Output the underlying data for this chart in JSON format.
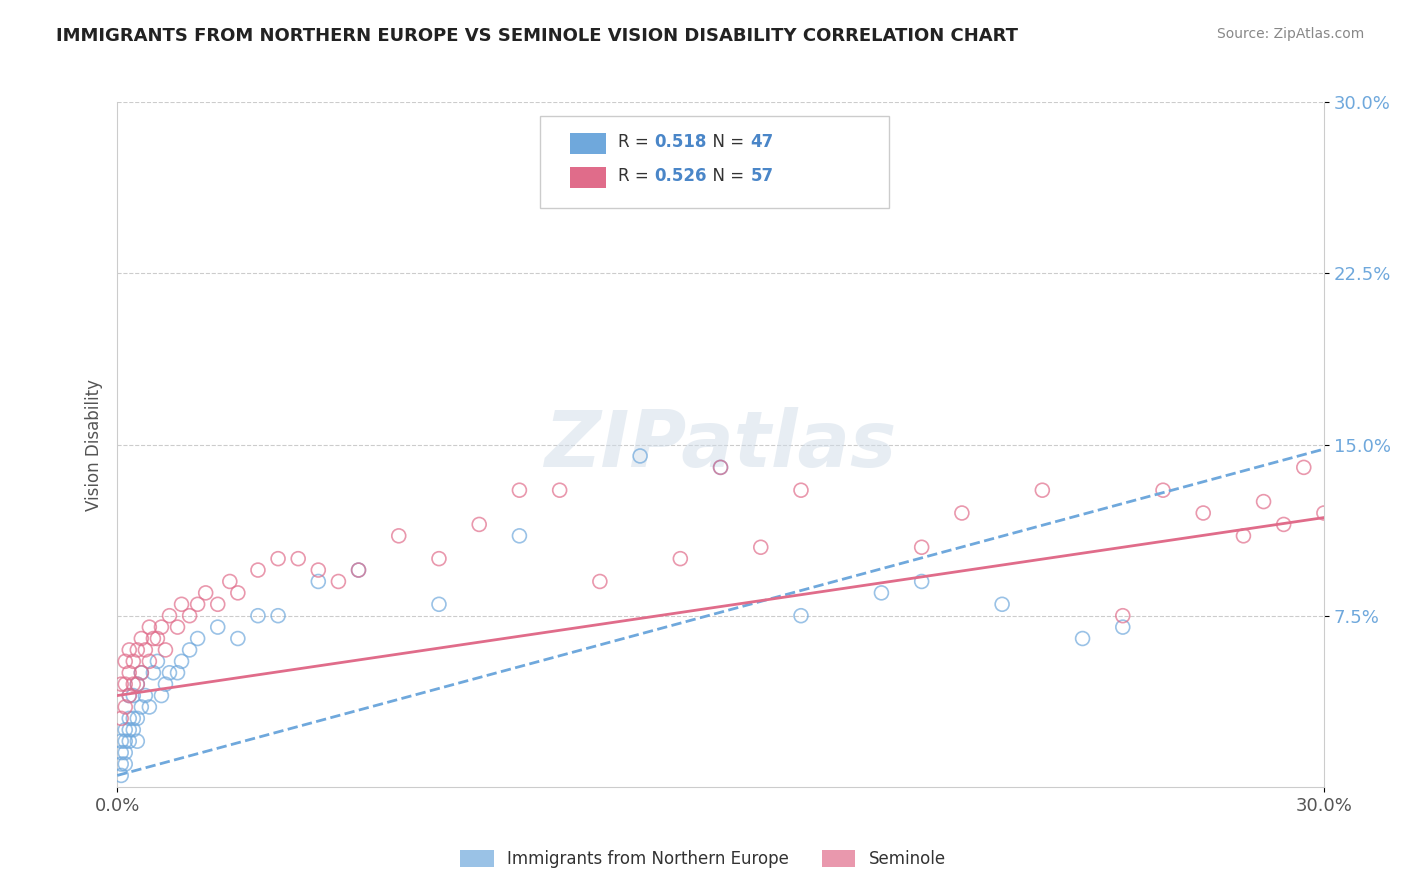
{
  "title": "IMMIGRANTS FROM NORTHERN EUROPE VS SEMINOLE VISION DISABILITY CORRELATION CHART",
  "source": "Source: ZipAtlas.com",
  "ylabel": "Vision Disability",
  "xlim": [
    0.0,
    0.3
  ],
  "ylim": [
    0.0,
    0.3
  ],
  "ytick_positions": [
    0.075,
    0.15,
    0.225,
    0.3
  ],
  "grid_color": "#cccccc",
  "background_color": "#ffffff",
  "blue_color": "#6fa8dc",
  "pink_color": "#e06c8a",
  "blue_R": 0.518,
  "blue_N": 47,
  "pink_R": 0.526,
  "pink_N": 57,
  "legend_label_blue": "Immigrants from Northern Europe",
  "legend_label_pink": "Seminole",
  "accent_color": "#4a86c8",
  "blue_scatter_x": [
    0.001,
    0.001,
    0.001,
    0.001,
    0.002,
    0.002,
    0.002,
    0.002,
    0.003,
    0.003,
    0.003,
    0.003,
    0.004,
    0.004,
    0.004,
    0.005,
    0.005,
    0.005,
    0.006,
    0.006,
    0.007,
    0.008,
    0.009,
    0.01,
    0.011,
    0.012,
    0.013,
    0.015,
    0.016,
    0.018,
    0.02,
    0.025,
    0.03,
    0.035,
    0.04,
    0.05,
    0.06,
    0.08,
    0.1,
    0.13,
    0.15,
    0.2,
    0.24,
    0.25,
    0.17,
    0.19,
    0.22
  ],
  "blue_scatter_y": [
    0.005,
    0.01,
    0.015,
    0.02,
    0.01,
    0.015,
    0.02,
    0.025,
    0.02,
    0.025,
    0.03,
    0.04,
    0.025,
    0.03,
    0.04,
    0.02,
    0.03,
    0.045,
    0.035,
    0.05,
    0.04,
    0.035,
    0.05,
    0.055,
    0.04,
    0.045,
    0.05,
    0.05,
    0.055,
    0.06,
    0.065,
    0.07,
    0.065,
    0.075,
    0.075,
    0.09,
    0.095,
    0.08,
    0.11,
    0.145,
    0.14,
    0.09,
    0.065,
    0.07,
    0.075,
    0.085,
    0.08
  ],
  "pink_scatter_x": [
    0.001,
    0.001,
    0.002,
    0.002,
    0.002,
    0.003,
    0.003,
    0.003,
    0.004,
    0.004,
    0.005,
    0.005,
    0.006,
    0.006,
    0.007,
    0.008,
    0.008,
    0.009,
    0.01,
    0.011,
    0.012,
    0.013,
    0.015,
    0.016,
    0.018,
    0.02,
    0.022,
    0.025,
    0.028,
    0.03,
    0.035,
    0.04,
    0.045,
    0.05,
    0.055,
    0.06,
    0.07,
    0.08,
    0.09,
    0.1,
    0.11,
    0.12,
    0.14,
    0.16,
    0.17,
    0.2,
    0.21,
    0.23,
    0.25,
    0.26,
    0.27,
    0.28,
    0.285,
    0.29,
    0.295,
    0.3,
    0.15
  ],
  "pink_scatter_y": [
    0.03,
    0.045,
    0.035,
    0.045,
    0.055,
    0.04,
    0.05,
    0.06,
    0.045,
    0.055,
    0.045,
    0.06,
    0.05,
    0.065,
    0.06,
    0.055,
    0.07,
    0.065,
    0.065,
    0.07,
    0.06,
    0.075,
    0.07,
    0.08,
    0.075,
    0.08,
    0.085,
    0.08,
    0.09,
    0.085,
    0.095,
    0.1,
    0.1,
    0.095,
    0.09,
    0.095,
    0.11,
    0.1,
    0.115,
    0.13,
    0.13,
    0.09,
    0.1,
    0.105,
    0.13,
    0.105,
    0.12,
    0.13,
    0.075,
    0.13,
    0.12,
    0.11,
    0.125,
    0.115,
    0.14,
    0.12,
    0.14
  ],
  "blue_line_x0": 0.0,
  "blue_line_x1": 0.3,
  "blue_line_y0": 0.005,
  "blue_line_y1": 0.148,
  "pink_line_x0": 0.0,
  "pink_line_x1": 0.3,
  "pink_line_y0": 0.04,
  "pink_line_y1": 0.118
}
